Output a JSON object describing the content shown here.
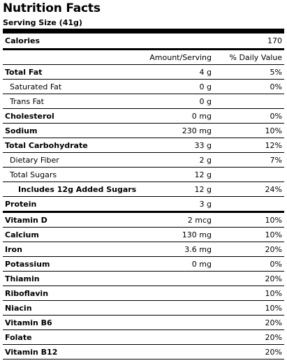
{
  "title": "Nutrition Facts",
  "serving": "Serving Size (41g)",
  "calories": {
    "label": "Calories",
    "value": "170"
  },
  "header": {
    "amount": "Amount/Serving",
    "dv": "% Daily Value"
  },
  "nutrients": [
    {
      "name": "Total Fat",
      "amount": "4 g",
      "dv": "5%"
    },
    {
      "name": "Saturated Fat",
      "amount": "0 g",
      "dv": "0%"
    },
    {
      "name": "Trans Fat",
      "amount": "0 g",
      "dv": ""
    },
    {
      "name": "Cholesterol",
      "amount": "0 mg",
      "dv": "0%"
    },
    {
      "name": "Sodium",
      "amount": "230 mg",
      "dv": "10%"
    },
    {
      "name": "Total Carbohydrate",
      "amount": "33 g",
      "dv": "12%"
    },
    {
      "name": "Dietary Fiber",
      "amount": "2 g",
      "dv": "7%"
    },
    {
      "name": "Total Sugars",
      "amount": "12 g",
      "dv": ""
    },
    {
      "name": "Includes 12g Added Sugars",
      "amount": "12 g",
      "dv": "24%"
    },
    {
      "name": "Protein",
      "amount": "3 g",
      "dv": ""
    }
  ],
  "vitamins": [
    {
      "name": "Vitamin D",
      "amount": "2 mcg",
      "dv": "10%"
    },
    {
      "name": "Calcium",
      "amount": "130 mg",
      "dv": "10%"
    },
    {
      "name": "Iron",
      "amount": "3.6 mg",
      "dv": "20%"
    },
    {
      "name": "Potassium",
      "amount": "0 mg",
      "dv": "0%"
    },
    {
      "name": "Thiamin",
      "amount": "",
      "dv": "20%"
    },
    {
      "name": "Riboflavin",
      "amount": "",
      "dv": "10%"
    },
    {
      "name": "Niacin",
      "amount": "",
      "dv": "10%"
    },
    {
      "name": "Vitamin B6",
      "amount": "",
      "dv": "20%"
    },
    {
      "name": "Folate",
      "amount": "",
      "dv": "20%"
    },
    {
      "name": "Vitamin B12",
      "amount": "",
      "dv": "20%"
    }
  ]
}
